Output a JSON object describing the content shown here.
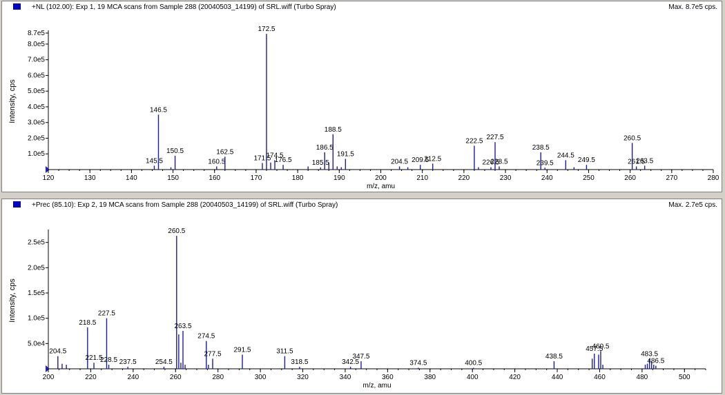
{
  "chart_data": [
    {
      "type": "bar",
      "title": "+NL (102.00): Exp 1, 19 MCA scans from Sample 288 (20040503_14199) of SRL.wiff (Turbo Spray)",
      "max_label": "Max. 8.7e5 cps.",
      "xlabel": "m/z, amu",
      "ylabel": "Intensity, cps",
      "xlim": [
        120,
        280
      ],
      "ylim": [
        0,
        870000
      ],
      "x_ticks": [
        "120",
        "130",
        "140",
        "150",
        "160",
        "170",
        "180",
        "190",
        "200",
        "210",
        "220",
        "230",
        "240",
        "250",
        "260",
        "270",
        "280"
      ],
      "y_ticks": [
        {
          "value": 100000,
          "label": "1.0e5"
        },
        {
          "value": 200000,
          "label": "2.0e5"
        },
        {
          "value": 300000,
          "label": "3.0e5"
        },
        {
          "value": 400000,
          "label": "4.0e5"
        },
        {
          "value": 500000,
          "label": "5.0e5"
        },
        {
          "value": 600000,
          "label": "6.0e5"
        },
        {
          "value": 700000,
          "label": "7.0e5"
        },
        {
          "value": 800000,
          "label": "8.0e5"
        },
        {
          "value": 870000,
          "label": "8.7e5"
        }
      ],
      "peaks": [
        {
          "x": 145.5,
          "y": 25000,
          "label": "145.5"
        },
        {
          "x": 146.5,
          "y": 350000,
          "label": "146.5"
        },
        {
          "x": 150.5,
          "y": 88000,
          "label": "150.5"
        },
        {
          "x": 149.5,
          "y": 15000
        },
        {
          "x": 160.5,
          "y": 20000,
          "label": "160.5"
        },
        {
          "x": 162.5,
          "y": 82000,
          "label": "162.5"
        },
        {
          "x": 171.5,
          "y": 42000,
          "label": "171.5"
        },
        {
          "x": 172.5,
          "y": 865000,
          "label": "172.5"
        },
        {
          "x": 173.5,
          "y": 45000
        },
        {
          "x": 174.5,
          "y": 60000,
          "label": "174.5"
        },
        {
          "x": 176.5,
          "y": 30000,
          "label": "176.5"
        },
        {
          "x": 182.5,
          "y": 20000
        },
        {
          "x": 185.5,
          "y": 14000,
          "label": "185.5"
        },
        {
          "x": 186.5,
          "y": 110000,
          "label": "186.5"
        },
        {
          "x": 187.5,
          "y": 45000
        },
        {
          "x": 188.5,
          "y": 225000,
          "label": "188.5"
        },
        {
          "x": 189.5,
          "y": 20000
        },
        {
          "x": 190.5,
          "y": 15000
        },
        {
          "x": 191.5,
          "y": 68000,
          "label": "191.5"
        },
        {
          "x": 204.5,
          "y": 20000,
          "label": "204.5"
        },
        {
          "x": 206.5,
          "y": 15000
        },
        {
          "x": 209.5,
          "y": 30000,
          "label": "209.5"
        },
        {
          "x": 212.5,
          "y": 38000,
          "label": "212.5"
        },
        {
          "x": 222.5,
          "y": 152000,
          "label": "222.5"
        },
        {
          "x": 223.5,
          "y": 15000
        },
        {
          "x": 226.5,
          "y": 15000,
          "label": "226.5"
        },
        {
          "x": 227.5,
          "y": 175000,
          "label": "227.5"
        },
        {
          "x": 228.5,
          "y": 20000,
          "label": "228.5"
        },
        {
          "x": 238.5,
          "y": 110000,
          "label": "238.5"
        },
        {
          "x": 239.5,
          "y": 12000,
          "label": "239.5"
        },
        {
          "x": 244.5,
          "y": 60000,
          "label": "244.5"
        },
        {
          "x": 246.5,
          "y": 15000
        },
        {
          "x": 249.5,
          "y": 30000,
          "label": "249.5"
        },
        {
          "x": 260.5,
          "y": 170000,
          "label": "260.5"
        },
        {
          "x": 261.5,
          "y": 20000,
          "label": "261.5"
        },
        {
          "x": 263.5,
          "y": 25000,
          "label": "263.5"
        }
      ]
    },
    {
      "type": "bar",
      "title": "+Prec (85.10): Exp 2, 19 MCA scans from Sample 288 (20040503_14199) of SRL.wiff (Turbo Spray)",
      "max_label": "Max. 2.7e5 cps.",
      "xlabel": "m/z, amu",
      "ylabel": "Intensity, cps",
      "xlim": [
        200,
        510
      ],
      "ylim": [
        0,
        270000
      ],
      "x_ticks": [
        "200",
        "220",
        "240",
        "260",
        "280",
        "300",
        "320",
        "340",
        "360",
        "380",
        "400",
        "420",
        "440",
        "460",
        "480",
        "500"
      ],
      "y_ticks": [
        {
          "value": 50000,
          "label": "5.0e4"
        },
        {
          "value": 100000,
          "label": "1.0e5"
        },
        {
          "value": 150000,
          "label": "1.5e5"
        },
        {
          "value": 200000,
          "label": "2.0e5"
        },
        {
          "value": 250000,
          "label": "2.5e5"
        }
      ],
      "peaks": [
        {
          "x": 204.5,
          "y": 25000,
          "label": "204.5"
        },
        {
          "x": 206.5,
          "y": 10000
        },
        {
          "x": 208.5,
          "y": 8000
        },
        {
          "x": 218.5,
          "y": 82000,
          "label": "218.5"
        },
        {
          "x": 221.5,
          "y": 12000,
          "label": "221.5"
        },
        {
          "x": 227.5,
          "y": 100000,
          "label": "227.5"
        },
        {
          "x": 228.5,
          "y": 8000,
          "label": "228.5"
        },
        {
          "x": 237.5,
          "y": 4000,
          "label": "237.5"
        },
        {
          "x": 254.5,
          "y": 4000,
          "label": "254.5"
        },
        {
          "x": 260.5,
          "y": 263000,
          "label": "260.5"
        },
        {
          "x": 261.5,
          "y": 68000
        },
        {
          "x": 262.5,
          "y": 12000
        },
        {
          "x": 263.5,
          "y": 75000,
          "label": "263.5"
        },
        {
          "x": 264.5,
          "y": 8000
        },
        {
          "x": 274.5,
          "y": 55000,
          "label": "274.5"
        },
        {
          "x": 275.5,
          "y": 8000
        },
        {
          "x": 277.5,
          "y": 20000,
          "label": "277.5"
        },
        {
          "x": 291.5,
          "y": 28000,
          "label": "291.5"
        },
        {
          "x": 311.5,
          "y": 25000,
          "label": "311.5"
        },
        {
          "x": 318.5,
          "y": 4000,
          "label": "318.5"
        },
        {
          "x": 342.5,
          "y": 4000,
          "label": "342.5"
        },
        {
          "x": 347.5,
          "y": 15000,
          "label": "347.5"
        },
        {
          "x": 374.5,
          "y": 2000,
          "label": "374.5"
        },
        {
          "x": 400.5,
          "y": 2000,
          "label": "400.5"
        },
        {
          "x": 438.5,
          "y": 15000,
          "label": "438.5"
        },
        {
          "x": 456.5,
          "y": 20000
        },
        {
          "x": 457.5,
          "y": 30000,
          "label": "457.5"
        },
        {
          "x": 459.5,
          "y": 28000
        },
        {
          "x": 460.5,
          "y": 35000,
          "label": "460.5"
        },
        {
          "x": 461.5,
          "y": 8000
        },
        {
          "x": 481.5,
          "y": 8000
        },
        {
          "x": 482.5,
          "y": 10000
        },
        {
          "x": 483.5,
          "y": 20000,
          "label": "483.5"
        },
        {
          "x": 484.5,
          "y": 15000
        },
        {
          "x": 485.5,
          "y": 8000
        },
        {
          "x": 486.5,
          "y": 6000,
          "label": "486.5"
        }
      ]
    }
  ]
}
